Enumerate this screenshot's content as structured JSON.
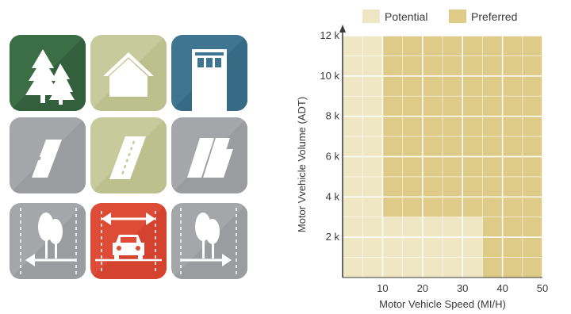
{
  "icon_grid": {
    "tiles": [
      {
        "name": "forest-tile",
        "icon": "trees-icon",
        "color": "#3c6e45"
      },
      {
        "name": "rural-home-tile",
        "icon": "house-icon",
        "color": "#c7cb9c"
      },
      {
        "name": "urban-building-tile",
        "icon": "building-icon",
        "color": "#3f7591"
      },
      {
        "name": "narrow-road-tile",
        "icon": "road-icon",
        "color": "#a4a6a9"
      },
      {
        "name": "two-lane-road-tile",
        "icon": "dashed-road-icon",
        "color": "#c7cb9c"
      },
      {
        "name": "wide-road-tile",
        "icon": "multi-lane-road-icon",
        "color": "#a4a6a9"
      },
      {
        "name": "sidewalk-left-tile",
        "icon": "trees-arrow-left-icon",
        "color": "#a4a6a9"
      },
      {
        "name": "car-lane-tile",
        "icon": "car-width-icon",
        "color": "#dd4c37"
      },
      {
        "name": "sidewalk-right-tile",
        "icon": "trees-arrow-right-icon",
        "color": "#a4a6a9"
      }
    ]
  },
  "chart_data": {
    "type": "area",
    "xlabel": "Motor Vehicle Speed (MI/H)",
    "ylabel": "Motor Vvehicle Volume (ADT)",
    "x_ticks": [
      "10",
      "20",
      "30",
      "40",
      "50"
    ],
    "y_ticks": [
      "2 k",
      "4 k",
      "6 k",
      "8 k",
      "10 k",
      "12 k"
    ],
    "xlim": [
      0,
      50
    ],
    "ylim": [
      0,
      12000
    ],
    "grid": true,
    "legend": {
      "position": "top",
      "entries": [
        "Potential",
        "Preferred"
      ]
    },
    "colors": {
      "potential": "#efe6c4",
      "preferred": "#dfcb88",
      "grid": "#ffffff",
      "axis": "#3a3a3a"
    },
    "regions": [
      {
        "name": "Potential",
        "description": "speed 0–10 MI/H, all volumes; and speed 10–35 MI/H, volume 0–3 k",
        "x": [
          [
            0,
            10
          ],
          [
            10,
            35
          ]
        ],
        "y": [
          [
            0,
            12000
          ],
          [
            0,
            3000
          ]
        ]
      },
      {
        "name": "Preferred",
        "x": [
          [
            10,
            50
          ],
          [
            35,
            50
          ]
        ],
        "y": [
          [
            3000,
            12000
          ],
          [
            0,
            3000
          ]
        ]
      }
    ]
  }
}
